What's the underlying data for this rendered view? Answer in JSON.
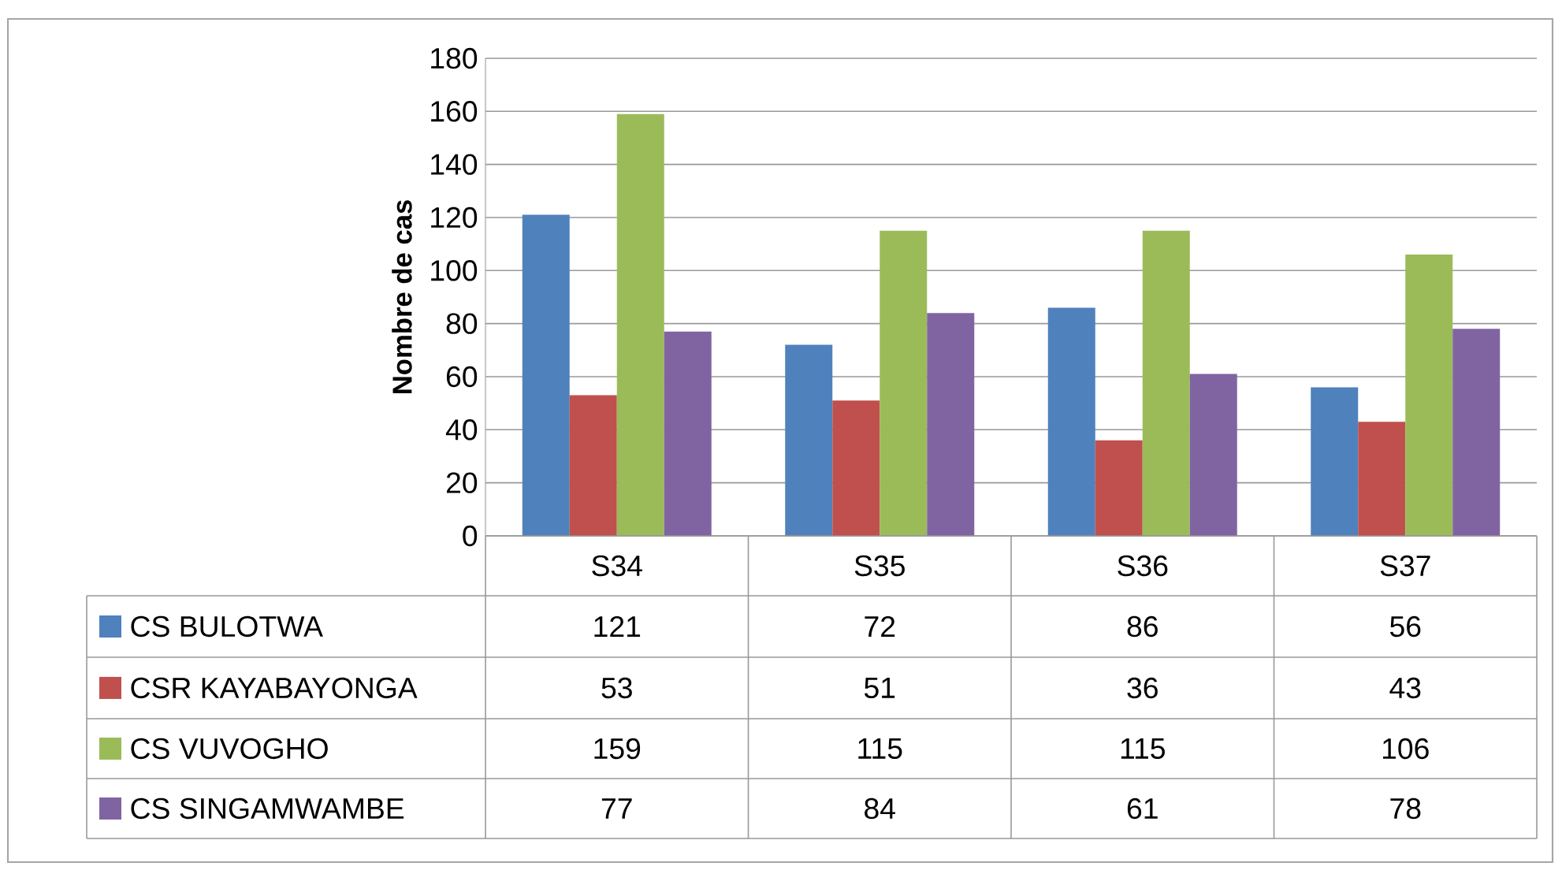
{
  "chart_data": {
    "type": "bar",
    "ylabel": "Nombre de cas",
    "categories": [
      "S34",
      "S35",
      "S36",
      "S37"
    ],
    "series": [
      {
        "name": "CS BULOTWA",
        "color": "#4f81bd",
        "values": [
          121,
          72,
          86,
          56
        ]
      },
      {
        "name": "CSR KAYABAYONGA",
        "color": "#c0504d",
        "values": [
          53,
          51,
          36,
          43
        ]
      },
      {
        "name": "CS VUVOGHO",
        "color": "#9bbb59",
        "values": [
          159,
          115,
          115,
          106
        ]
      },
      {
        "name": "CS SINGAMWAMBE",
        "color": "#8064a2",
        "values": [
          77,
          84,
          61,
          78
        ]
      }
    ],
    "ylim": [
      0,
      180
    ],
    "yticks": [
      0,
      20,
      40,
      60,
      80,
      100,
      120,
      140,
      160,
      180
    ],
    "grid": "y",
    "legend": "bottom left",
    "data_labels": true
  }
}
